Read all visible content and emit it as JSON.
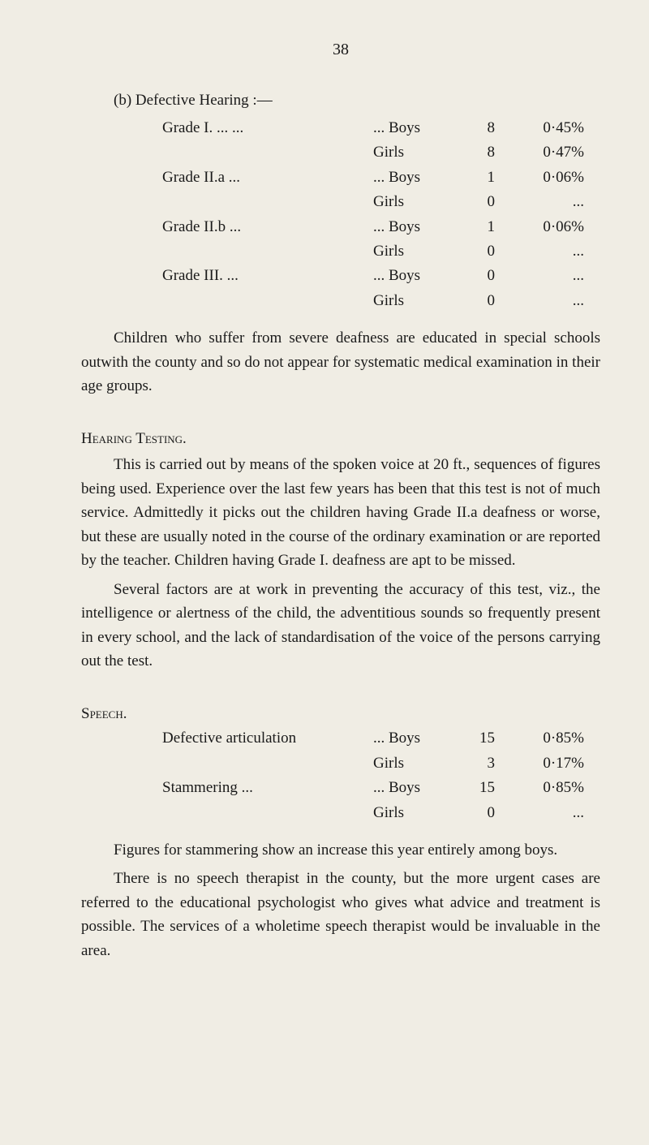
{
  "page_number": "38",
  "defective_hearing": {
    "heading": "(b) Defective Hearing :—",
    "rows": [
      {
        "label": "Grade I.   ...          ...",
        "gender": "... Boys",
        "count": "8",
        "pct": "0·45%"
      },
      {
        "label": "",
        "gender": "Girls",
        "count": "8",
        "pct": "0·47%"
      },
      {
        "label": "Grade II.a             ...",
        "gender": "... Boys",
        "count": "1",
        "pct": "0·06%"
      },
      {
        "label": "",
        "gender": "Girls",
        "count": "0",
        "pct": "..."
      },
      {
        "label": "Grade II.b             ...",
        "gender": "... Boys",
        "count": "1",
        "pct": "0·06%"
      },
      {
        "label": "",
        "gender": "Girls",
        "count": "0",
        "pct": "..."
      },
      {
        "label": "Grade III.              ...",
        "gender": "... Boys",
        "count": "0",
        "pct": "..."
      },
      {
        "label": "",
        "gender": "Girls",
        "count": "0",
        "pct": "..."
      }
    ]
  },
  "para1": "Children who suffer from severe deafness are educated in special schools outwith the county and so do not appear for systematic medical examination in their age groups.",
  "hearing_testing_heading": "Hearing Testing.",
  "para2": "This is carried out by means of the spoken voice at 20 ft., sequences of figures being used.    Experience over the last few years has been that this test is not of much service.   Admittedly it picks out the children having Grade II.a deafness or worse, but these are usually noted in the course of the ordinary examination or are reported by the teacher.    Children having Grade I. deafness are apt to be missed.",
  "para3": "Several factors are at work in preventing the accuracy of this test, viz., the intelligence or alertness of the child, the adventitious sounds so frequently present in every school, and the lack of standardisation of the voice of the persons carrying out the test.",
  "speech_heading": "Speech.",
  "speech_rows": [
    {
      "label": "Defective articulation",
      "gender": "... Boys",
      "count": "15",
      "pct": "0·85%"
    },
    {
      "label": "",
      "gender": "Girls",
      "count": "3",
      "pct": "0·17%"
    },
    {
      "label": "Stammering          ...",
      "gender": "... Boys",
      "count": "15",
      "pct": "0·85%"
    },
    {
      "label": "",
      "gender": "Girls",
      "count": "0",
      "pct": "..."
    }
  ],
  "para4": "Figures for stammering show an increase this year entirely among boys.",
  "para5": "There is no speech therapist in the county, but the more urgent cases are referred to the educational psychologist who gives what advice and treatment is possible.    The services of a wholetime speech therapist would be invaluable in the area."
}
